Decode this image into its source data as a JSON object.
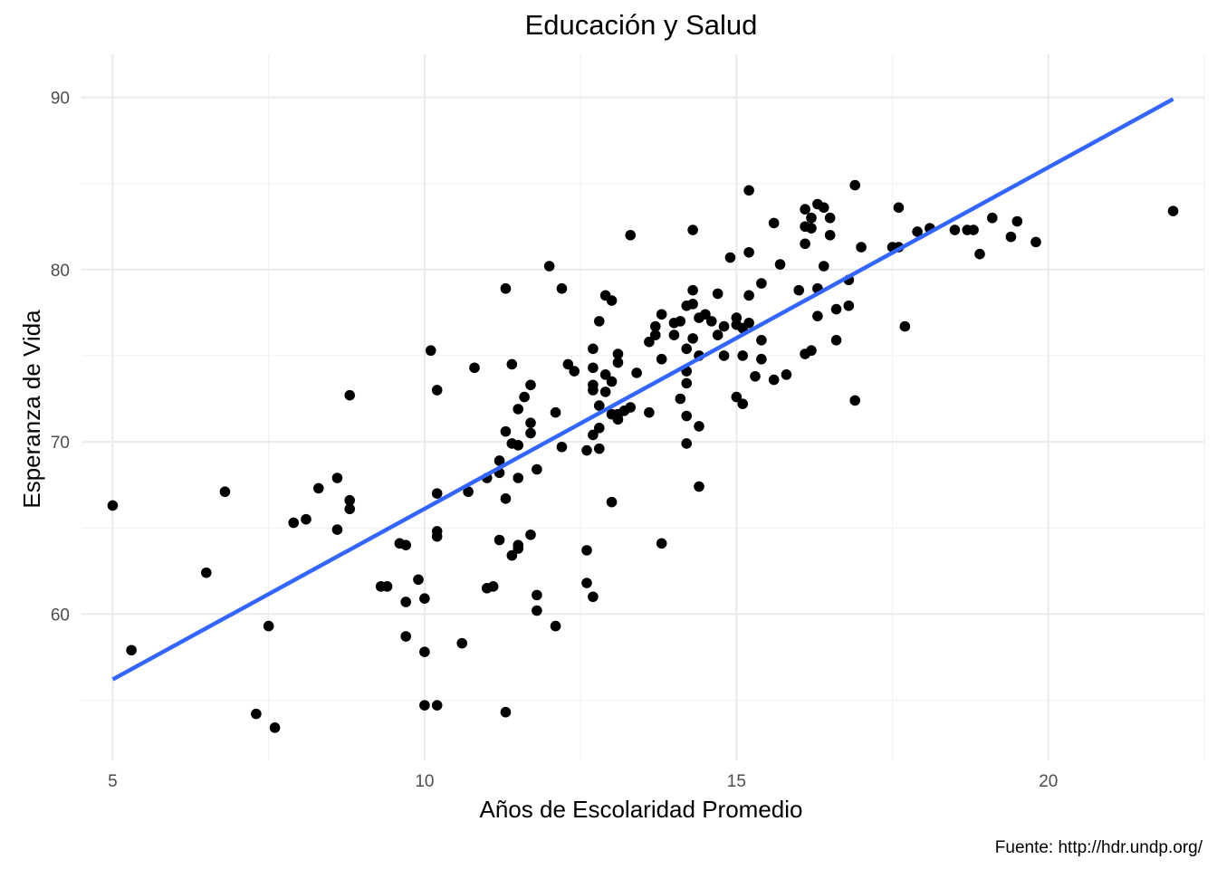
{
  "chart_data": {
    "type": "scatter",
    "title": "Educación y Salud",
    "xlabel": "Años de Escolaridad Promedio",
    "ylabel": "Esperanza de Vida",
    "caption": "Fuente: http://hdr.undp.org/",
    "xlim": [
      4.5,
      22.5
    ],
    "ylim": [
      51.5,
      92.5
    ],
    "x_ticks": [
      5,
      10,
      15,
      20
    ],
    "y_ticks": [
      60,
      70,
      80,
      90
    ],
    "x_minor": [
      7.5,
      12.5,
      17.5,
      22.5
    ],
    "y_minor": [
      55,
      65,
      75,
      85
    ],
    "grid": true,
    "legend": "none",
    "colors": {
      "points": "#000000",
      "trend": "#3366FF",
      "background": "#FFFFFF",
      "grid": "#EBEBEB"
    },
    "trend_line": {
      "x": [
        5.0,
        22.0
      ],
      "y": [
        56.2,
        89.9
      ]
    },
    "points": [
      [
        5.0,
        66.3
      ],
      [
        5.3,
        57.9
      ],
      [
        6.5,
        62.4
      ],
      [
        6.8,
        67.1
      ],
      [
        7.3,
        54.2
      ],
      [
        7.5,
        59.3
      ],
      [
        7.6,
        53.4
      ],
      [
        7.9,
        65.3
      ],
      [
        8.1,
        65.5
      ],
      [
        8.3,
        67.3
      ],
      [
        8.6,
        67.9
      ],
      [
        8.6,
        64.9
      ],
      [
        8.8,
        66.6
      ],
      [
        8.8,
        66.1
      ],
      [
        8.8,
        72.7
      ],
      [
        9.3,
        61.6
      ],
      [
        9.4,
        61.6
      ],
      [
        9.6,
        64.1
      ],
      [
        9.7,
        64.0
      ],
      [
        9.7,
        60.7
      ],
      [
        9.7,
        58.7
      ],
      [
        9.9,
        62.0
      ],
      [
        10.0,
        60.9
      ],
      [
        10.0,
        57.8
      ],
      [
        10.0,
        54.7
      ],
      [
        10.1,
        75.3
      ],
      [
        10.2,
        73.0
      ],
      [
        10.2,
        67.0
      ],
      [
        10.2,
        64.8
      ],
      [
        10.2,
        64.5
      ],
      [
        10.2,
        54.7
      ],
      [
        10.6,
        58.3
      ],
      [
        10.7,
        67.1
      ],
      [
        10.8,
        74.3
      ],
      [
        11.0,
        67.9
      ],
      [
        11.0,
        61.5
      ],
      [
        11.1,
        61.6
      ],
      [
        11.2,
        68.9
      ],
      [
        11.2,
        68.2
      ],
      [
        11.2,
        64.3
      ],
      [
        11.3,
        78.9
      ],
      [
        11.3,
        70.6
      ],
      [
        11.3,
        66.7
      ],
      [
        11.3,
        54.3
      ],
      [
        11.4,
        74.5
      ],
      [
        11.4,
        69.9
      ],
      [
        11.4,
        63.4
      ],
      [
        11.5,
        71.9
      ],
      [
        11.5,
        69.8
      ],
      [
        11.5,
        67.9
      ],
      [
        11.5,
        64.0
      ],
      [
        11.5,
        63.8
      ],
      [
        11.6,
        72.6
      ],
      [
        11.7,
        73.3
      ],
      [
        11.7,
        71.1
      ],
      [
        11.7,
        70.5
      ],
      [
        11.7,
        64.6
      ],
      [
        11.8,
        68.4
      ],
      [
        11.8,
        61.1
      ],
      [
        11.8,
        60.2
      ],
      [
        12.0,
        80.2
      ],
      [
        12.1,
        71.7
      ],
      [
        12.1,
        59.3
      ],
      [
        12.2,
        78.9
      ],
      [
        12.2,
        69.7
      ],
      [
        12.3,
        74.5
      ],
      [
        12.4,
        74.1
      ],
      [
        12.6,
        69.5
      ],
      [
        12.6,
        63.7
      ],
      [
        12.6,
        61.8
      ],
      [
        12.7,
        75.4
      ],
      [
        12.7,
        74.3
      ],
      [
        12.7,
        73.3
      ],
      [
        12.7,
        73.0
      ],
      [
        12.7,
        70.4
      ],
      [
        12.7,
        61.0
      ],
      [
        12.8,
        77.0
      ],
      [
        12.8,
        72.1
      ],
      [
        12.8,
        70.8
      ],
      [
        12.8,
        69.6
      ],
      [
        12.9,
        78.5
      ],
      [
        12.9,
        73.9
      ],
      [
        12.9,
        72.9
      ],
      [
        13.0,
        78.2
      ],
      [
        13.0,
        73.5
      ],
      [
        13.0,
        71.6
      ],
      [
        13.0,
        66.5
      ],
      [
        13.1,
        75.1
      ],
      [
        13.1,
        74.6
      ],
      [
        13.1,
        71.6
      ],
      [
        13.1,
        71.3
      ],
      [
        13.2,
        71.8
      ],
      [
        13.3,
        82.0
      ],
      [
        13.3,
        72.0
      ],
      [
        13.4,
        74.0
      ],
      [
        13.6,
        75.8
      ],
      [
        13.6,
        71.7
      ],
      [
        13.7,
        76.7
      ],
      [
        13.7,
        76.2
      ],
      [
        13.8,
        77.4
      ],
      [
        13.8,
        74.8
      ],
      [
        13.8,
        64.1
      ],
      [
        14.0,
        76.9
      ],
      [
        14.0,
        76.2
      ],
      [
        14.1,
        77.0
      ],
      [
        14.1,
        72.5
      ],
      [
        14.2,
        77.9
      ],
      [
        14.2,
        75.4
      ],
      [
        14.2,
        74.1
      ],
      [
        14.2,
        73.4
      ],
      [
        14.2,
        71.5
      ],
      [
        14.2,
        69.9
      ],
      [
        14.3,
        82.3
      ],
      [
        14.3,
        78.8
      ],
      [
        14.3,
        78.0
      ],
      [
        14.3,
        76.0
      ],
      [
        14.4,
        77.2
      ],
      [
        14.4,
        75.0
      ],
      [
        14.4,
        70.9
      ],
      [
        14.4,
        67.4
      ],
      [
        14.5,
        77.4
      ],
      [
        14.6,
        77.0
      ],
      [
        14.7,
        78.6
      ],
      [
        14.7,
        76.2
      ],
      [
        14.8,
        76.7
      ],
      [
        14.8,
        75.0
      ],
      [
        14.9,
        80.7
      ],
      [
        15.0,
        77.2
      ],
      [
        15.0,
        76.8
      ],
      [
        15.0,
        72.6
      ],
      [
        15.1,
        76.6
      ],
      [
        15.1,
        75.0
      ],
      [
        15.1,
        72.2
      ],
      [
        15.2,
        84.6
      ],
      [
        15.2,
        81.0
      ],
      [
        15.2,
        78.5
      ],
      [
        15.2,
        76.9
      ],
      [
        15.3,
        73.8
      ],
      [
        15.4,
        79.2
      ],
      [
        15.4,
        75.9
      ],
      [
        15.4,
        74.8
      ],
      [
        15.6,
        82.7
      ],
      [
        15.6,
        73.6
      ],
      [
        15.7,
        80.3
      ],
      [
        15.8,
        73.9
      ],
      [
        16.0,
        78.8
      ],
      [
        16.1,
        83.5
      ],
      [
        16.1,
        82.5
      ],
      [
        16.1,
        81.5
      ],
      [
        16.1,
        75.1
      ],
      [
        16.2,
        83.0
      ],
      [
        16.2,
        82.4
      ],
      [
        16.2,
        75.3
      ],
      [
        16.3,
        83.8
      ],
      [
        16.3,
        78.9
      ],
      [
        16.3,
        77.3
      ],
      [
        16.4,
        83.6
      ],
      [
        16.4,
        80.2
      ],
      [
        16.5,
        83.0
      ],
      [
        16.5,
        82.0
      ],
      [
        16.6,
        77.7
      ],
      [
        16.6,
        75.9
      ],
      [
        16.8,
        79.4
      ],
      [
        16.8,
        77.9
      ],
      [
        16.9,
        84.9
      ],
      [
        16.9,
        72.4
      ],
      [
        17.0,
        81.3
      ],
      [
        17.5,
        81.3
      ],
      [
        17.6,
        83.6
      ],
      [
        17.6,
        81.3
      ],
      [
        17.7,
        76.7
      ],
      [
        17.9,
        82.2
      ],
      [
        18.1,
        82.4
      ],
      [
        18.5,
        82.3
      ],
      [
        18.7,
        82.3
      ],
      [
        18.8,
        82.3
      ],
      [
        18.9,
        80.9
      ],
      [
        19.1,
        83.0
      ],
      [
        19.4,
        81.9
      ],
      [
        19.5,
        82.8
      ],
      [
        19.8,
        81.6
      ],
      [
        22.0,
        83.4
      ]
    ]
  }
}
